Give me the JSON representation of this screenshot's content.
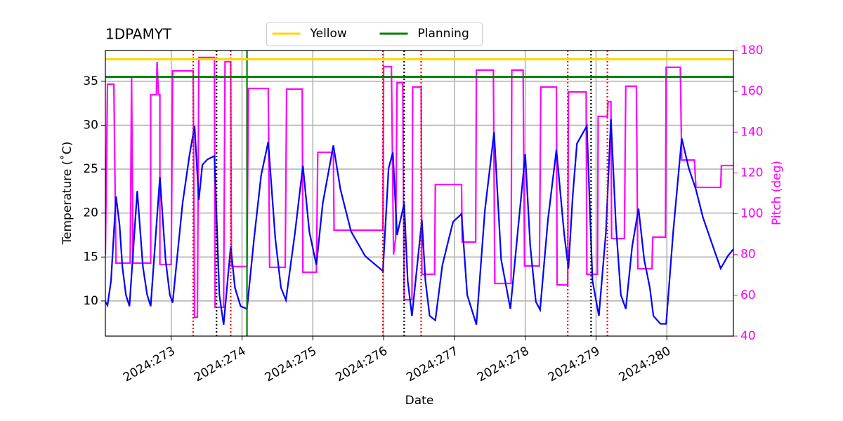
{
  "chart_data": {
    "type": "line",
    "title": "1DPAMYT",
    "xlabel": "Date",
    "ylabel": "Temperature (˚C)",
    "y2label": "Pitch (deg)",
    "y2color": "#ff00ff",
    "grid": true,
    "legend": "upper center",
    "xlim": [
      272.07,
      280.94
    ],
    "ylim": [
      6.0,
      38.5
    ],
    "y2lim": [
      40,
      180
    ],
    "xticks": [
      {
        "value": 273,
        "label": "2024:273"
      },
      {
        "value": 274,
        "label": "2024:274"
      },
      {
        "value": 275,
        "label": "2024:275"
      },
      {
        "value": 276,
        "label": "2024:276"
      },
      {
        "value": 277,
        "label": "2024:277"
      },
      {
        "value": 278,
        "label": "2024:278"
      },
      {
        "value": 279,
        "label": "2024:279"
      },
      {
        "value": 280,
        "label": "2024:280"
      }
    ],
    "yticks": [
      10,
      15,
      20,
      25,
      30,
      35
    ],
    "y2ticks": [
      40,
      60,
      80,
      100,
      120,
      140,
      160,
      180
    ],
    "hlines": [
      {
        "name": "Yellow",
        "value": 37.5,
        "color": "#ffd700"
      },
      {
        "name": "Planning",
        "value": 35.5,
        "color": "#008000"
      }
    ],
    "vlines": [
      {
        "value": 273.31,
        "color": "#ff0000",
        "style": "dotted"
      },
      {
        "value": 273.84,
        "color": "#ff0000",
        "style": "dotted"
      },
      {
        "value": 275.99,
        "color": "#ff0000",
        "style": "dotted"
      },
      {
        "value": 276.53,
        "color": "#ff0000",
        "style": "dotted"
      },
      {
        "value": 278.6,
        "color": "#ff0000",
        "style": "dotted"
      },
      {
        "value": 279.16,
        "color": "#ff0000",
        "style": "dotted"
      },
      {
        "value": 273.64,
        "color": "#000000",
        "style": "dotted"
      },
      {
        "value": 276.29,
        "color": "#000000",
        "style": "dotted"
      },
      {
        "value": 278.93,
        "color": "#000000",
        "style": "dotted"
      },
      {
        "value": 274.07,
        "color": "#008000",
        "style": "solid"
      }
    ],
    "series": [
      {
        "color": "#0000ff",
        "x": [
          272.07,
          272.1,
          272.15,
          272.22,
          272.27,
          272.31,
          272.36,
          272.41,
          272.52,
          272.6,
          272.66,
          272.71,
          272.84,
          272.92,
          272.98,
          273.02,
          273.16,
          273.26,
          273.33,
          273.39,
          273.44,
          273.51,
          273.61,
          273.68,
          273.74,
          273.84,
          273.9,
          273.98,
          274.07,
          274.17,
          274.27,
          274.37,
          274.47,
          274.55,
          274.62,
          274.75,
          274.86,
          274.95,
          275.05,
          275.14,
          275.29,
          275.39,
          275.54,
          275.74,
          275.99,
          276.07,
          276.13,
          276.19,
          276.29,
          276.34,
          276.4,
          276.54,
          276.59,
          276.65,
          276.73,
          276.83,
          276.98,
          277.1,
          277.18,
          277.31,
          277.43,
          277.56,
          277.66,
          277.79,
          277.91,
          278.0,
          278.07,
          278.15,
          278.21,
          278.32,
          278.44,
          278.55,
          278.61,
          278.67,
          278.73,
          278.82,
          278.87,
          278.95,
          279.04,
          279.14,
          279.21,
          279.28,
          279.35,
          279.42,
          279.51,
          279.6,
          279.68,
          279.76,
          279.81,
          279.91,
          279.99,
          280.09,
          280.21,
          280.31,
          280.41,
          280.51,
          280.63,
          280.76,
          280.86,
          280.94
        ],
        "values": [
          9.9,
          9.5,
          12.3,
          21.9,
          18.7,
          13.9,
          10.7,
          9.4,
          22.5,
          13.9,
          10.7,
          9.4,
          24.1,
          14.7,
          10.7,
          9.8,
          21.1,
          26.7,
          29.9,
          21.5,
          25.5,
          26.1,
          26.5,
          10.7,
          7.3,
          16.2,
          11.5,
          9.4,
          9.1,
          17.1,
          24.3,
          28.1,
          17.1,
          11.5,
          10.1,
          17.9,
          25.4,
          17.9,
          14.1,
          21.1,
          27.7,
          22.7,
          17.9,
          15.1,
          13.4,
          25.1,
          26.9,
          17.5,
          21.1,
          12.3,
          8.3,
          19.2,
          12.3,
          8.3,
          7.8,
          14.1,
          19.0,
          19.9,
          10.7,
          7.3,
          20.3,
          29.2,
          14.7,
          9.1,
          19.2,
          26.7,
          16.3,
          9.9,
          9.0,
          19.2,
          27.2,
          17.6,
          13.7,
          21.9,
          27.9,
          29.2,
          29.9,
          12.3,
          8.3,
          17.9,
          30.7,
          18.7,
          10.7,
          9.1,
          16.2,
          20.5,
          14.7,
          11.5,
          8.3,
          7.4,
          7.4,
          17.9,
          28.5,
          25.1,
          22.7,
          19.5,
          16.7,
          13.7,
          15.1,
          15.9
        ]
      },
      {
        "color": "#ff00ff",
        "axis": "y2",
        "x": [
          272.07,
          272.1,
          272.19,
          272.22,
          272.42,
          272.44,
          272.46,
          272.71,
          272.71,
          272.79,
          272.8,
          272.82,
          272.84,
          272.84,
          273.0,
          273.02,
          273.31,
          273.33,
          273.37,
          273.39,
          273.61,
          273.62,
          273.74,
          273.76,
          273.84,
          273.85,
          274.07,
          274.09,
          274.37,
          274.39,
          274.61,
          274.63,
          274.85,
          274.86,
          275.05,
          275.07,
          275.29,
          275.3,
          275.99,
          276.0,
          276.11,
          276.14,
          276.17,
          276.19,
          276.27,
          276.29,
          276.4,
          276.41,
          276.53,
          276.54,
          276.72,
          276.73,
          277.1,
          277.11,
          277.3,
          277.31,
          277.55,
          277.57,
          277.8,
          277.81,
          277.97,
          277.99,
          278.2,
          278.22,
          278.44,
          278.45,
          278.6,
          278.61,
          278.86,
          278.87,
          279.02,
          279.03,
          279.16,
          279.17,
          279.21,
          279.22,
          279.4,
          279.42,
          279.57,
          279.59,
          279.79,
          279.8,
          279.98,
          279.99,
          280.19,
          280.21,
          280.39,
          280.41,
          280.76,
          280.77,
          280.94
        ],
        "values": [
          80,
          163.5,
          163.5,
          75.8,
          75.8,
          166.9,
          75.8,
          75.8,
          158.3,
          158.3,
          174.5,
          158.3,
          158.3,
          75.1,
          75.1,
          170.0,
          170.0,
          49.3,
          49.3,
          176.6,
          176.6,
          54.1,
          54.1,
          174.5,
          174.5,
          74.1,
          74.1,
          161.4,
          161.4,
          73.7,
          73.7,
          161.1,
          161.1,
          71.3,
          71.3,
          130.1,
          130.1,
          91.9,
          91.9,
          172.1,
          172.1,
          80,
          88,
          164.2,
          164.2,
          57.9,
          57.9,
          162.1,
          162.1,
          70.3,
          70.3,
          114.3,
          114.3,
          86.1,
          86.1,
          170.4,
          170.4,
          65.8,
          65.8,
          170.4,
          170.4,
          74.4,
          74.4,
          162.1,
          162.1,
          65.1,
          65.1,
          159.7,
          159.7,
          70.3,
          70.3,
          147.7,
          147.7,
          154.9,
          154.9,
          87.8,
          87.8,
          162.5,
          162.5,
          73.0,
          73.0,
          88.5,
          88.5,
          171.8,
          171.8,
          126.3,
          126.3,
          112.9,
          112.9,
          123.6,
          123.6
        ]
      }
    ]
  }
}
